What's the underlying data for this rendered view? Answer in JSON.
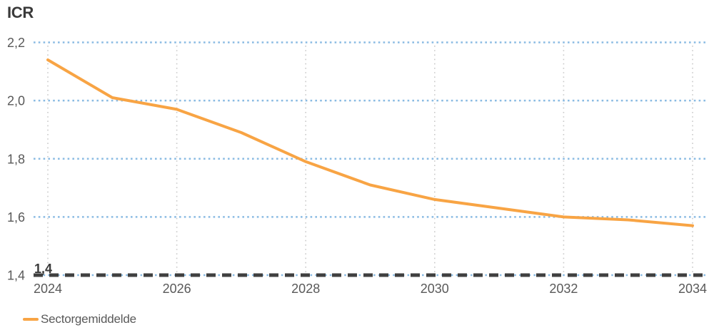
{
  "title": "ICR",
  "legend": {
    "label": "Sectorgemiddelde"
  },
  "colors": {
    "series_orange": "#F8A444",
    "grid_blue": "#8ABBE3",
    "grid_gray": "#C9C9C9",
    "reference_dark": "#404040",
    "tick_text": "#595959",
    "title_text": "#3A3A3A"
  },
  "chart_data": {
    "type": "line",
    "title": "ICR",
    "x": [
      2024,
      2025,
      2026,
      2027,
      2028,
      2029,
      2030,
      2031,
      2032,
      2033,
      2034
    ],
    "series": [
      {
        "name": "Sectorgemiddelde",
        "color": "#F8A444",
        "values": [
          2.14,
          2.01,
          1.97,
          1.89,
          1.79,
          1.71,
          1.66,
          1.63,
          1.6,
          1.59,
          1.57
        ]
      }
    ],
    "xlim": [
      2024,
      2034
    ],
    "ylim": [
      1.4,
      2.2
    ],
    "x_ticks": [
      2024,
      2026,
      2028,
      2030,
      2032,
      2034
    ],
    "x_tick_labels": [
      "2024",
      "2026",
      "2028",
      "2030",
      "2032",
      "2034"
    ],
    "y_ticks": [
      1.4,
      1.6,
      1.8,
      2.0,
      2.2
    ],
    "y_tick_labels": [
      "1,4",
      "1,6",
      "1,8",
      "2,0",
      "2,2"
    ],
    "reference_line": {
      "value": 1.4,
      "label": "1,4",
      "style": "dashed",
      "color": "#404040"
    },
    "grid": {
      "horizontal": "dotted-blue",
      "vertical": "dotted-gray",
      "h_color": "#8ABBE3",
      "v_color": "#C9C9C9"
    },
    "legend_position": "bottom-left",
    "decimal_separator": ","
  }
}
